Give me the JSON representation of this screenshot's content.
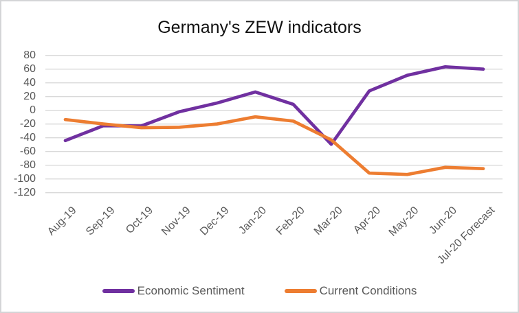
{
  "title": "Germany's ZEW indicators",
  "chart_data": {
    "type": "line",
    "title": "Germany's ZEW indicators",
    "categories": [
      "Aug-19",
      "Sep-19",
      "Oct-19",
      "Nov-19",
      "Dec-19",
      "Jan-20",
      "Feb-20",
      "Mar-20",
      "Apr-20",
      "May-20",
      "Jun-20",
      "Jul-20 Forecast"
    ],
    "series": [
      {
        "name": "Economic Sentiment",
        "color": "#7030A0",
        "values": [
          -44.1,
          -22.5,
          -22.8,
          -2.1,
          10.7,
          26.7,
          8.7,
          -49.5,
          28.2,
          51.0,
          63.4,
          60.0
        ]
      },
      {
        "name": "Current Conditions",
        "color": "#ED7D31",
        "values": [
          -13.5,
          -19.9,
          -25.3,
          -24.7,
          -19.9,
          -9.5,
          -15.7,
          -43.1,
          -91.5,
          -93.5,
          -83.1,
          -85.0
        ]
      }
    ],
    "xlabel": "",
    "ylabel": "",
    "ylim": [
      -120,
      80
    ],
    "yticks": [
      80,
      60,
      40,
      20,
      0,
      -20,
      -40,
      -60,
      -80,
      -100,
      -120
    ],
    "grid": "horizontal",
    "gridline_color": "#D9D9D9",
    "axis_text_color": "#595959",
    "title_color": "#111111",
    "legend_position": "bottom"
  }
}
